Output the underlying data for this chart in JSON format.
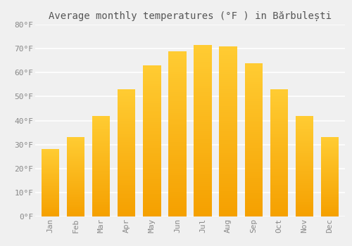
{
  "title": "Average monthly temperatures (°F ) in Bărbulești",
  "months": [
    "Jan",
    "Feb",
    "Mar",
    "Apr",
    "May",
    "Jun",
    "Jul",
    "Aug",
    "Sep",
    "Oct",
    "Nov",
    "Dec"
  ],
  "values": [
    28,
    33,
    42,
    53,
    63,
    69,
    71.5,
    71,
    64,
    53,
    42,
    33
  ],
  "bar_color_bottom": "#F5A000",
  "bar_color_top": "#FFCC33",
  "ylim": [
    0,
    80
  ],
  "yticks": [
    0,
    10,
    20,
    30,
    40,
    50,
    60,
    70,
    80
  ],
  "ytick_labels": [
    "0°F",
    "10°F",
    "20°F",
    "30°F",
    "40°F",
    "50°F",
    "60°F",
    "70°F",
    "80°F"
  ],
  "background_color": "#f0f0f0",
  "grid_color": "#ffffff",
  "title_fontsize": 10,
  "tick_fontsize": 8,
  "tick_color": "#888888",
  "font_family": "monospace",
  "bar_width": 0.7,
  "n_gradient_steps": 80
}
